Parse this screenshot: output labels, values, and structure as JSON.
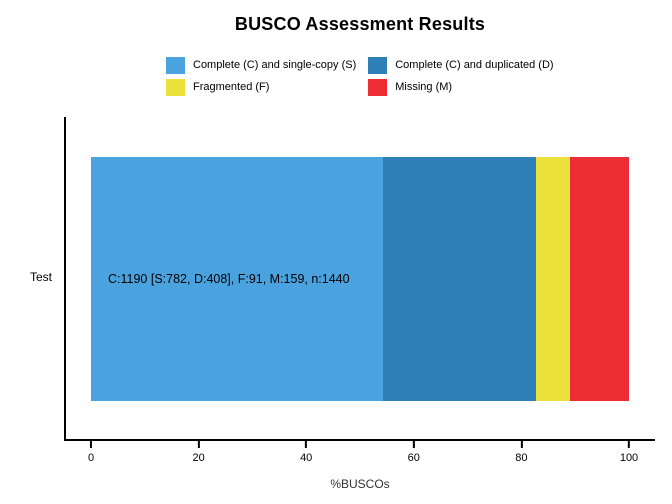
{
  "figure": {
    "title": "BUSCO Assessment Results",
    "y_category": "Test",
    "xlabel": "%BUSCOs",
    "bar_annotation": "C:1190 [S:782, D:408], F:91, M:159, n:1440"
  },
  "colors": {
    "single_copy": "#4AA3DF",
    "duplicated": "#2E7EB8",
    "fragmented": "#EDE23B",
    "missing": "#EC2D33",
    "axis": "#000000",
    "background": "#FFFFFF"
  },
  "chart_data": {
    "type": "bar",
    "orientation": "horizontal",
    "stacked": true,
    "title": "BUSCO Assessment Results",
    "xlabel": "%BUSCOs",
    "ylabel": "",
    "categories": [
      "Test"
    ],
    "xlim": [
      0,
      100
    ],
    "xticks": [
      0,
      20,
      40,
      60,
      80,
      100
    ],
    "grid": false,
    "legend_position": "top",
    "total_buscos": 1440,
    "series": [
      {
        "name": "Complete (C) and single-copy (S)",
        "count": 782,
        "values": [
          54.3056
        ],
        "color": "#4AA3DF"
      },
      {
        "name": "Complete (C) and duplicated (D)",
        "count": 408,
        "values": [
          28.3333
        ],
        "color": "#2E7EB8"
      },
      {
        "name": "Fragmented (F)",
        "count": 91,
        "values": [
          6.3194
        ],
        "color": "#EDE23B"
      },
      {
        "name": "Missing (M)",
        "count": 159,
        "values": [
          11.0417
        ],
        "color": "#EC2D33"
      }
    ],
    "annotations": [
      "C:1190 [S:782, D:408], F:91, M:159, n:1440"
    ]
  }
}
